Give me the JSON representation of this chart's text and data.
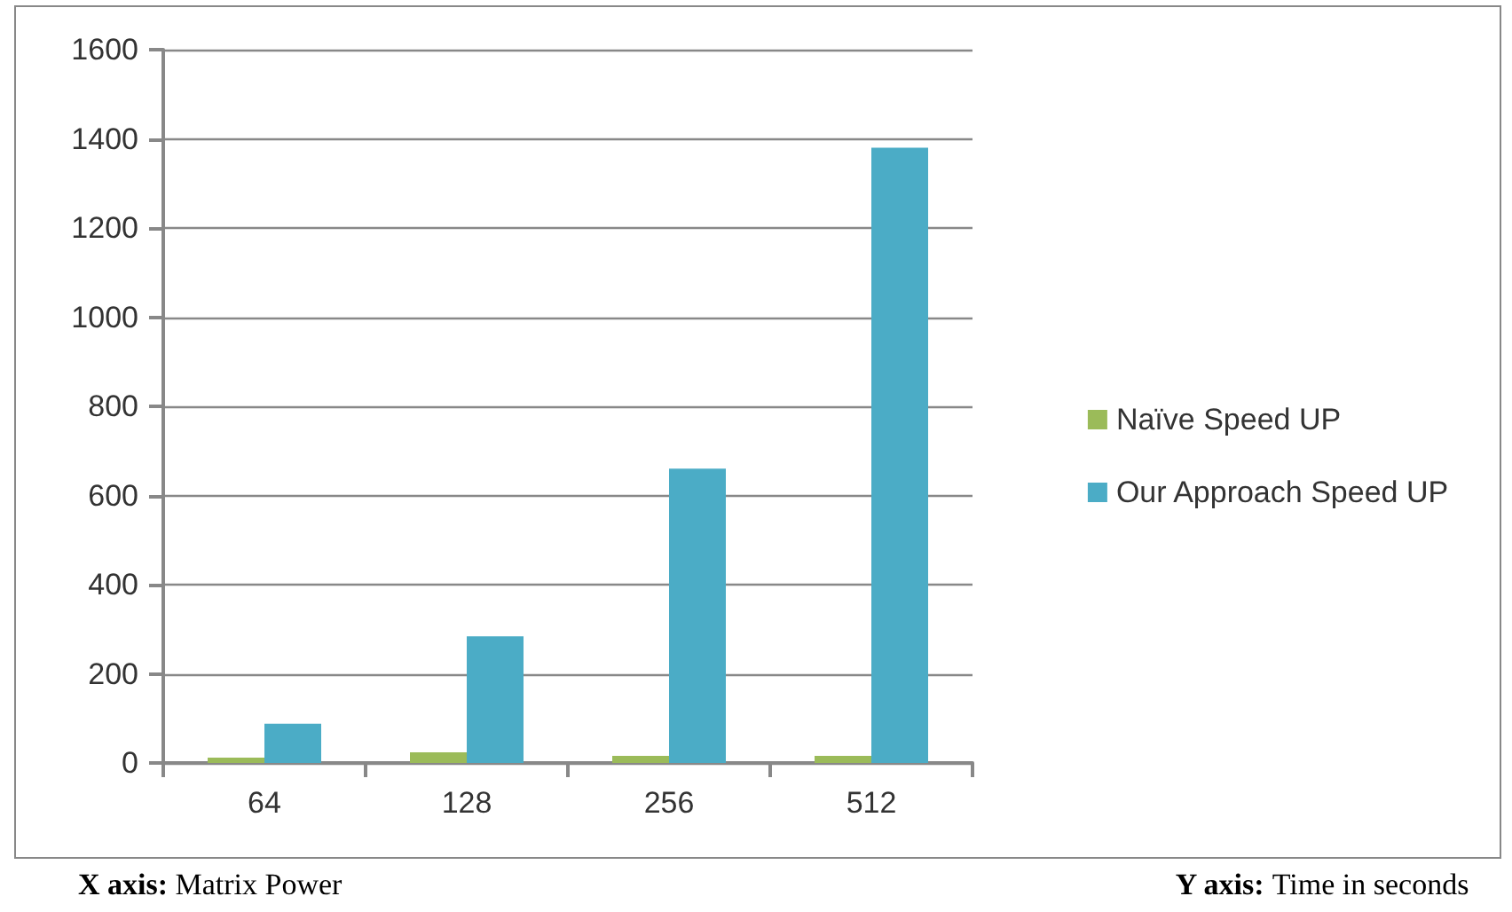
{
  "chart_data": {
    "type": "bar",
    "categories": [
      "64",
      "128",
      "256",
      "512"
    ],
    "series": [
      {
        "name": "Naïve Speed UP",
        "color": "#9bbb59",
        "values": [
          12,
          24,
          16,
          16
        ]
      },
      {
        "name": "Our Approach Speed UP",
        "color": "#4bacc6",
        "values": [
          88,
          284,
          660,
          1380
        ]
      }
    ],
    "ylim": [
      0,
      1600
    ],
    "yticks": [
      0,
      200,
      400,
      600,
      800,
      1000,
      1200,
      1400,
      1600
    ],
    "grid": "y",
    "legend": "right",
    "annotations": [
      "X axis: Matrix Power",
      "Y axis: Time in seconds"
    ]
  }
}
